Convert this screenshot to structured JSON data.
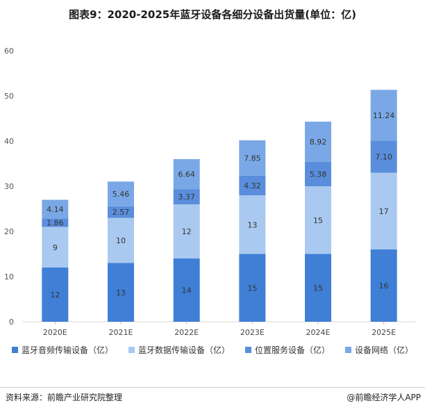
{
  "title": "图表9：2020-2025年蓝牙设备各细分设备出货量(单位：亿)",
  "source": "资料来源：前瞻产业研究院整理",
  "credit": "@前瞻经济学人APP",
  "colors": {
    "s1": "#3f7fd6",
    "s2": "#a9c9f0",
    "s3": "#5a8edc",
    "s4": "#7aa8e6"
  },
  "chart_data": {
    "type": "bar",
    "stacked": true,
    "categories": [
      "2020E",
      "2021E",
      "2022E",
      "2023E",
      "2024E",
      "2025E"
    ],
    "series": [
      {
        "name": "蓝牙音频传输设备（亿）",
        "values": [
          12,
          13,
          14,
          15,
          15,
          16
        ],
        "labels": [
          "12",
          "13",
          "14",
          "15",
          "15",
          "16"
        ]
      },
      {
        "name": "蓝牙数据传输设备（亿）",
        "values": [
          9,
          10,
          12,
          13,
          15,
          17
        ],
        "labels": [
          "9",
          "10",
          "12",
          "13",
          "15",
          "17"
        ]
      },
      {
        "name": "位置服务设备（亿）",
        "values": [
          1.86,
          2.57,
          3.37,
          4.32,
          5.38,
          7.1
        ],
        "labels": [
          "1.86",
          "2.57",
          "3.37",
          "4.32",
          "5.38",
          "7.10"
        ]
      },
      {
        "name": "设备网络（亿）",
        "values": [
          4.14,
          5.46,
          6.64,
          7.85,
          8.92,
          11.24
        ],
        "labels": [
          "4.14",
          "5.46",
          "6.64",
          "7.85",
          "8.92",
          "11.24"
        ]
      }
    ],
    "ylim": [
      0,
      60
    ],
    "yticks": [
      "0",
      "10",
      "20",
      "30",
      "40",
      "50",
      "60"
    ],
    "grid": false,
    "legend": "bottom"
  }
}
